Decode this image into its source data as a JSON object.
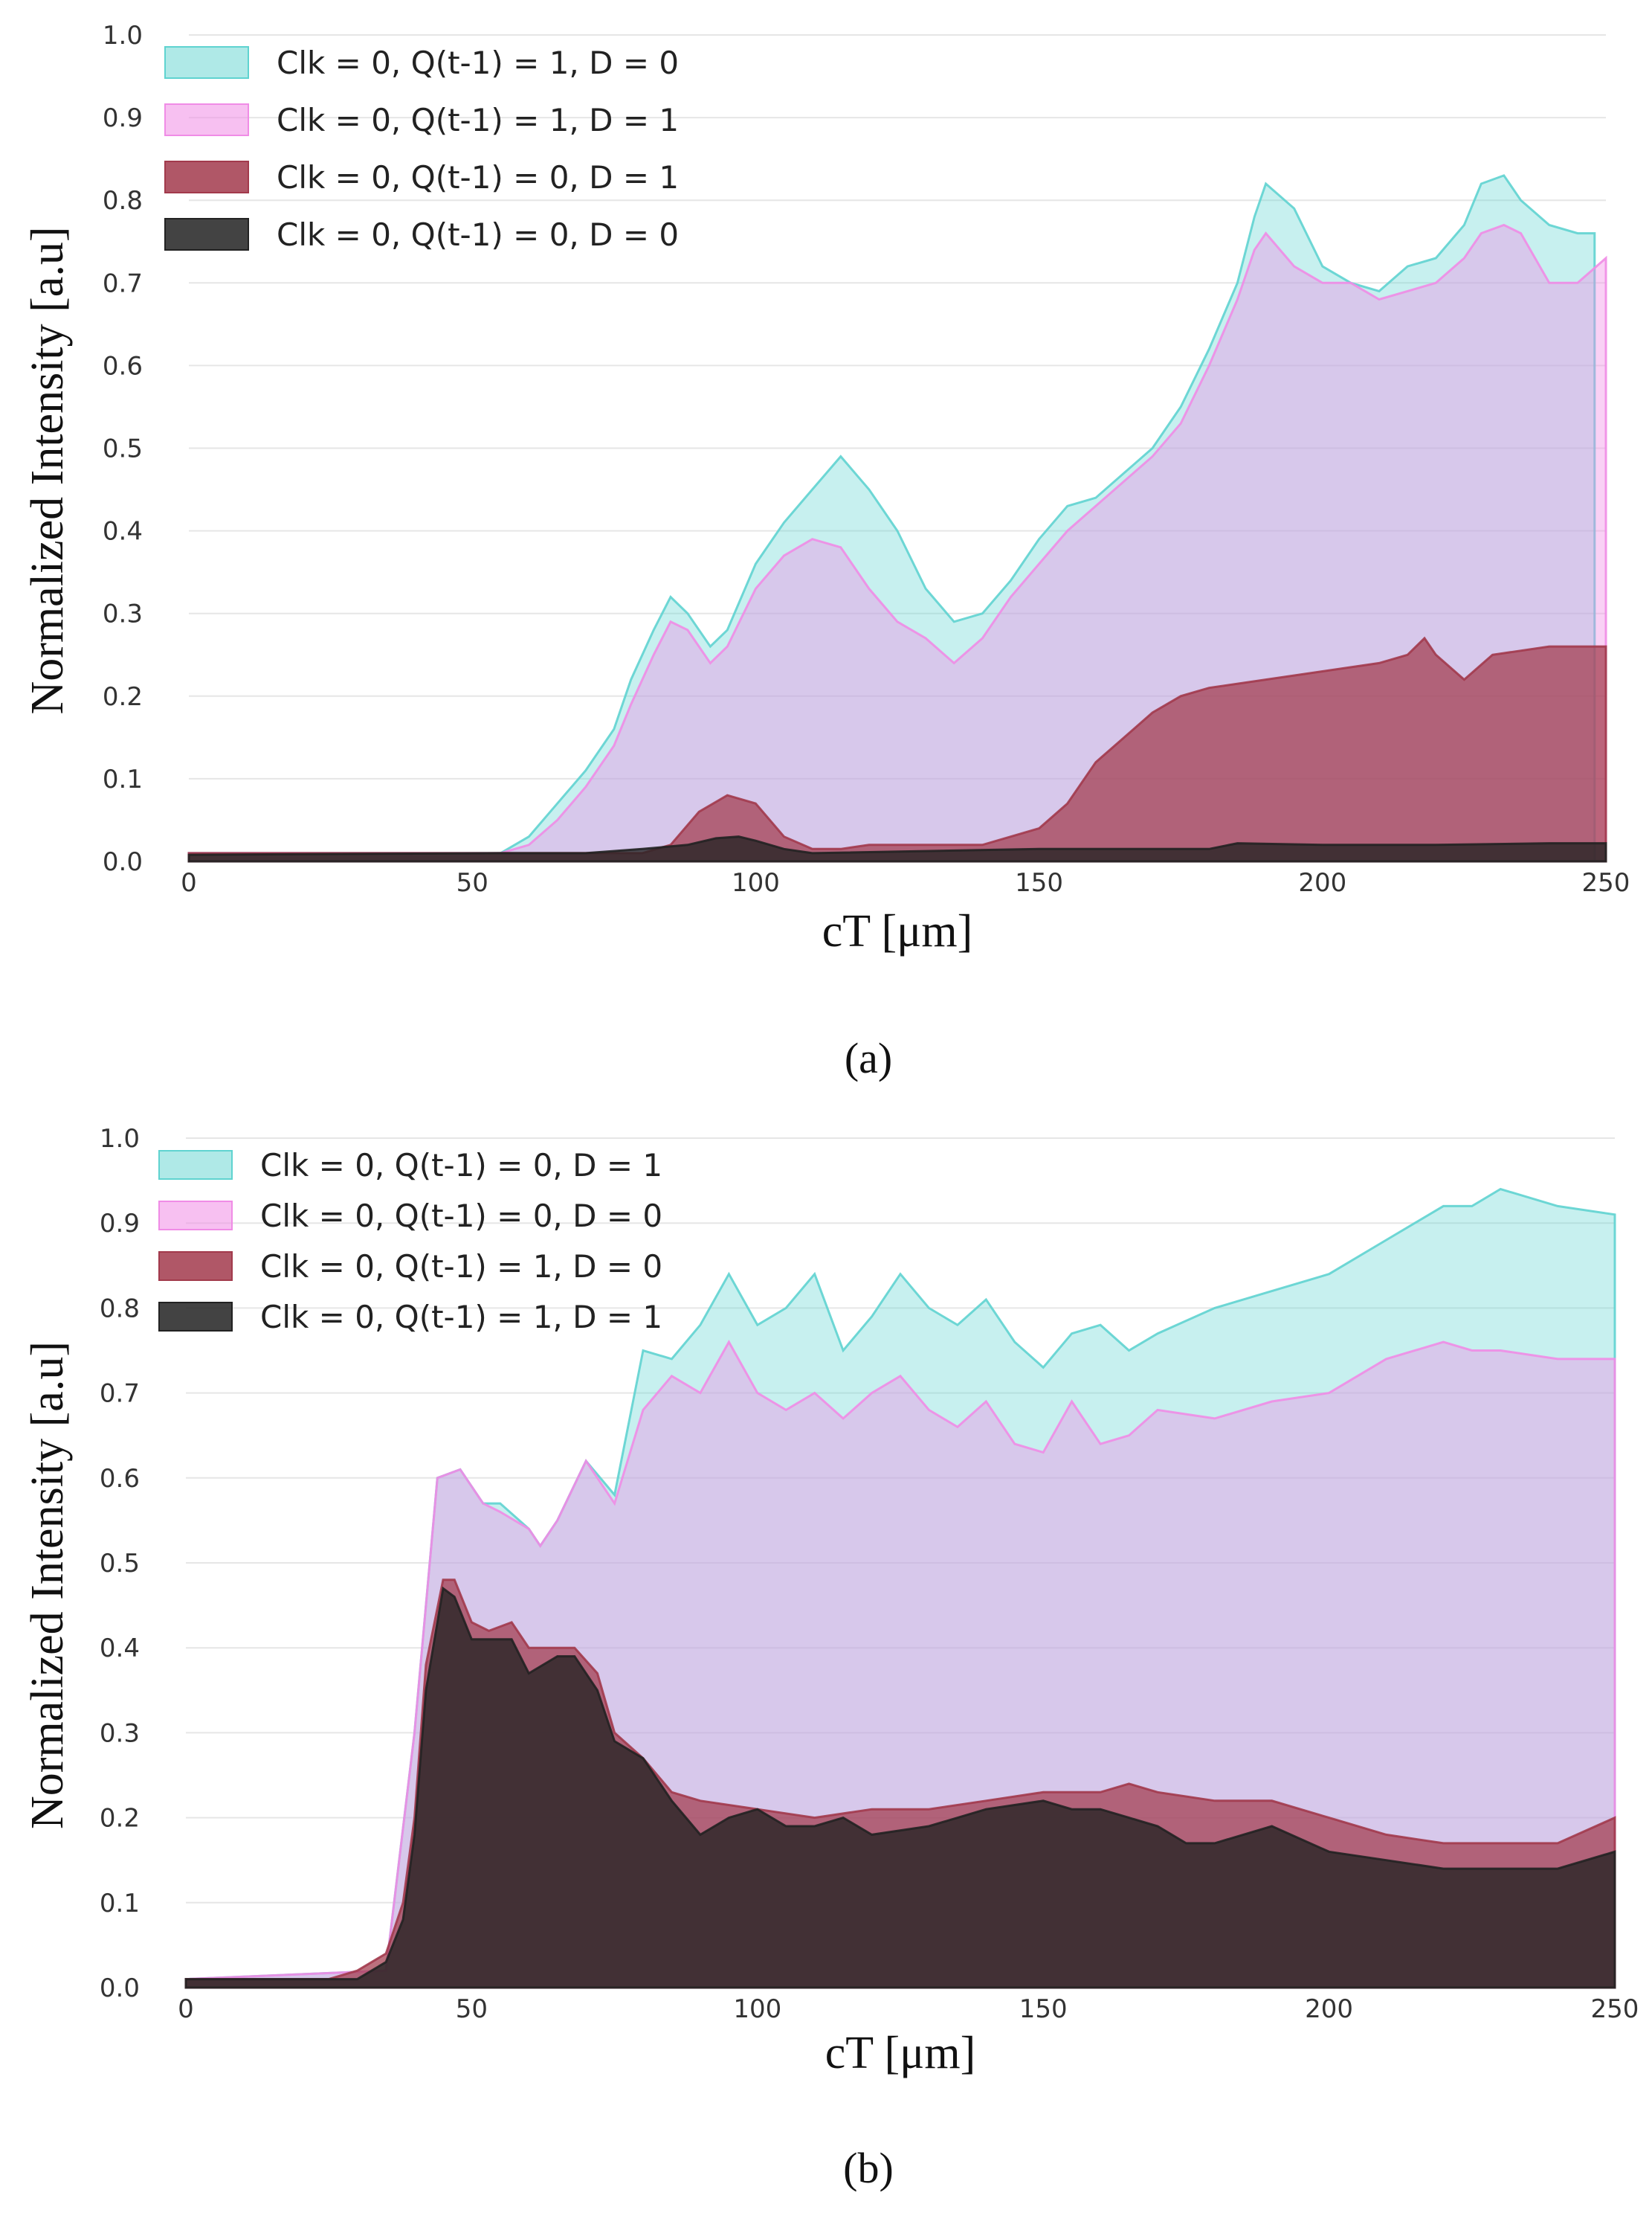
{
  "chart_data": [
    {
      "type": "area",
      "caption": "(a)",
      "xlabel": "cT [μm]",
      "ylabel": "Normalized Intensity [a.u]",
      "xlim": [
        0,
        250
      ],
      "ylim": [
        0,
        1.0
      ],
      "x_ticks": [
        "0",
        "50",
        "100",
        "150",
        "200",
        "250"
      ],
      "y_ticks": [
        "0.0",
        "0.1",
        "0.2",
        "0.3",
        "0.4",
        "0.5",
        "0.6",
        "0.7",
        "0.8",
        "0.9",
        "1.0"
      ],
      "grid": true,
      "legend_position": "top-left",
      "series": [
        {
          "name": "Clk = 0, Q(t-1) = 1, D = 0",
          "color": "#5fd3d0",
          "x": [
            0,
            55,
            60,
            65,
            70,
            75,
            78,
            82,
            85,
            88,
            92,
            95,
            100,
            105,
            110,
            115,
            120,
            125,
            130,
            135,
            140,
            145,
            150,
            155,
            160,
            165,
            170,
            175,
            180,
            185,
            188,
            190,
            195,
            200,
            205,
            210,
            215,
            220,
            225,
            228,
            232,
            235,
            240,
            245,
            248
          ],
          "values": [
            0.01,
            0.01,
            0.03,
            0.07,
            0.11,
            0.16,
            0.22,
            0.28,
            0.32,
            0.3,
            0.26,
            0.28,
            0.36,
            0.41,
            0.45,
            0.49,
            0.45,
            0.4,
            0.33,
            0.29,
            0.3,
            0.34,
            0.39,
            0.43,
            0.44,
            0.47,
            0.5,
            0.55,
            0.62,
            0.7,
            0.78,
            0.82,
            0.79,
            0.72,
            0.7,
            0.69,
            0.72,
            0.73,
            0.77,
            0.82,
            0.83,
            0.8,
            0.77,
            0.76,
            0.76
          ]
        },
        {
          "name": "Clk = 0, Q(t-1) = 1, D = 1",
          "color": "#f08ce6",
          "x": [
            0,
            55,
            60,
            65,
            70,
            75,
            78,
            82,
            85,
            88,
            92,
            95,
            100,
            105,
            110,
            115,
            120,
            125,
            130,
            135,
            140,
            145,
            150,
            155,
            160,
            165,
            170,
            175,
            180,
            185,
            188,
            190,
            195,
            200,
            205,
            210,
            215,
            220,
            225,
            228,
            232,
            235,
            240,
            245,
            250
          ],
          "values": [
            0.01,
            0.01,
            0.02,
            0.05,
            0.09,
            0.14,
            0.19,
            0.25,
            0.29,
            0.28,
            0.24,
            0.26,
            0.33,
            0.37,
            0.39,
            0.38,
            0.33,
            0.29,
            0.27,
            0.24,
            0.27,
            0.32,
            0.36,
            0.4,
            0.43,
            0.46,
            0.49,
            0.53,
            0.6,
            0.68,
            0.74,
            0.76,
            0.72,
            0.7,
            0.7,
            0.68,
            0.69,
            0.7,
            0.73,
            0.76,
            0.77,
            0.76,
            0.7,
            0.7,
            0.73
          ]
        },
        {
          "name": "Clk = 0, Q(t-1) = 0, D = 1",
          "color": "#a23a4c",
          "x": [
            0,
            80,
            85,
            90,
            95,
            100,
            105,
            110,
            115,
            120,
            130,
            140,
            145,
            150,
            155,
            160,
            165,
            170,
            175,
            180,
            190,
            200,
            210,
            215,
            218,
            220,
            225,
            230,
            240,
            250
          ],
          "values": [
            0.01,
            0.01,
            0.02,
            0.06,
            0.08,
            0.07,
            0.03,
            0.015,
            0.015,
            0.02,
            0.02,
            0.02,
            0.03,
            0.04,
            0.07,
            0.12,
            0.15,
            0.18,
            0.2,
            0.21,
            0.22,
            0.23,
            0.24,
            0.25,
            0.27,
            0.25,
            0.22,
            0.25,
            0.26,
            0.26
          ]
        },
        {
          "name": "Clk = 0, Q(t-1) = 0, D = 0",
          "color": "#222222",
          "x": [
            0,
            55,
            70,
            80,
            88,
            93,
            97,
            100,
            105,
            110,
            150,
            180,
            185,
            200,
            220,
            240,
            250
          ],
          "values": [
            0.008,
            0.01,
            0.01,
            0.015,
            0.02,
            0.028,
            0.03,
            0.025,
            0.015,
            0.01,
            0.015,
            0.015,
            0.022,
            0.02,
            0.02,
            0.022,
            0.022
          ]
        }
      ]
    },
    {
      "type": "area",
      "caption": "(b)",
      "xlabel": "cT [μm]",
      "ylabel": "Normalized Intensity [a.u]",
      "xlim": [
        0,
        250
      ],
      "ylim": [
        0,
        1.0
      ],
      "x_ticks": [
        "0",
        "50",
        "100",
        "150",
        "200",
        "250"
      ],
      "y_ticks": [
        "0.0",
        "0.1",
        "0.2",
        "0.3",
        "0.4",
        "0.5",
        "0.6",
        "0.7",
        "0.8",
        "0.9",
        "1.0"
      ],
      "grid": true,
      "legend_position": "top-left",
      "series": [
        {
          "name": "Clk = 0, Q(t-1) = 0, D = 1",
          "color": "#5fd3d0",
          "x": [
            0,
            35,
            40,
            44,
            48,
            52,
            55,
            60,
            62,
            65,
            70,
            75,
            80,
            85,
            90,
            95,
            100,
            105,
            110,
            115,
            120,
            125,
            130,
            135,
            140,
            145,
            150,
            155,
            160,
            165,
            170,
            180,
            190,
            200,
            210,
            220,
            225,
            230,
            240,
            250
          ],
          "values": [
            0.01,
            0.02,
            0.3,
            0.6,
            0.61,
            0.57,
            0.57,
            0.54,
            0.52,
            0.55,
            0.62,
            0.58,
            0.75,
            0.74,
            0.78,
            0.84,
            0.78,
            0.8,
            0.84,
            0.75,
            0.79,
            0.84,
            0.8,
            0.78,
            0.81,
            0.76,
            0.73,
            0.77,
            0.78,
            0.75,
            0.77,
            0.8,
            0.82,
            0.84,
            0.88,
            0.92,
            0.92,
            0.94,
            0.92,
            0.91
          ]
        },
        {
          "name": "Clk = 0, Q(t-1) = 0, D = 0",
          "color": "#f08ce6",
          "x": [
            0,
            35,
            40,
            44,
            48,
            52,
            55,
            60,
            62,
            65,
            70,
            75,
            80,
            85,
            90,
            95,
            100,
            105,
            110,
            115,
            120,
            125,
            130,
            135,
            140,
            145,
            150,
            155,
            160,
            165,
            170,
            180,
            190,
            200,
            210,
            220,
            225,
            230,
            240,
            250
          ],
          "values": [
            0.01,
            0.02,
            0.3,
            0.6,
            0.61,
            0.57,
            0.56,
            0.54,
            0.52,
            0.55,
            0.62,
            0.57,
            0.68,
            0.72,
            0.7,
            0.76,
            0.7,
            0.68,
            0.7,
            0.67,
            0.7,
            0.72,
            0.68,
            0.66,
            0.69,
            0.64,
            0.63,
            0.69,
            0.64,
            0.65,
            0.68,
            0.67,
            0.69,
            0.7,
            0.74,
            0.76,
            0.75,
            0.75,
            0.74,
            0.74
          ]
        },
        {
          "name": "Clk = 0, Q(t-1) = 1, D = 0",
          "color": "#a23a4c",
          "x": [
            0,
            25,
            30,
            35,
            38,
            40,
            42,
            45,
            47,
            50,
            53,
            57,
            60,
            65,
            68,
            72,
            75,
            80,
            85,
            90,
            100,
            110,
            120,
            130,
            140,
            150,
            160,
            165,
            170,
            180,
            190,
            200,
            210,
            220,
            240,
            250
          ],
          "values": [
            0.01,
            0.01,
            0.02,
            0.04,
            0.1,
            0.2,
            0.38,
            0.48,
            0.48,
            0.43,
            0.42,
            0.43,
            0.4,
            0.4,
            0.4,
            0.37,
            0.3,
            0.27,
            0.23,
            0.22,
            0.21,
            0.2,
            0.21,
            0.21,
            0.22,
            0.23,
            0.23,
            0.24,
            0.23,
            0.22,
            0.22,
            0.2,
            0.18,
            0.17,
            0.17,
            0.2
          ]
        },
        {
          "name": "Clk = 0, Q(t-1) = 1, D = 1",
          "color": "#222222",
          "x": [
            0,
            30,
            35,
            38,
            40,
            42,
            45,
            47,
            50,
            53,
            57,
            60,
            65,
            68,
            72,
            75,
            80,
            85,
            90,
            95,
            100,
            105,
            110,
            115,
            120,
            130,
            140,
            150,
            155,
            160,
            165,
            170,
            175,
            180,
            190,
            200,
            210,
            220,
            240,
            250
          ],
          "values": [
            0.01,
            0.01,
            0.03,
            0.08,
            0.18,
            0.35,
            0.47,
            0.46,
            0.41,
            0.41,
            0.41,
            0.37,
            0.39,
            0.39,
            0.35,
            0.29,
            0.27,
            0.22,
            0.18,
            0.2,
            0.21,
            0.19,
            0.19,
            0.2,
            0.18,
            0.19,
            0.21,
            0.22,
            0.21,
            0.21,
            0.2,
            0.19,
            0.17,
            0.17,
            0.19,
            0.16,
            0.15,
            0.14,
            0.14,
            0.16
          ]
        }
      ]
    }
  ]
}
